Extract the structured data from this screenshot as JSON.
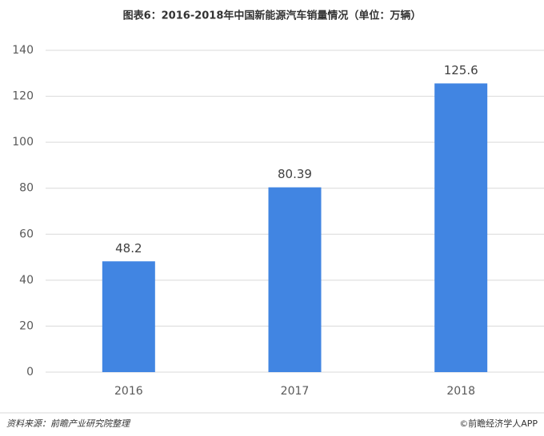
{
  "chart_data": {
    "type": "bar",
    "title": "图表6：2016-2018年中国新能源汽车销量情况（单位：万辆）",
    "categories": [
      "2016",
      "2017",
      "2018"
    ],
    "values": [
      48.2,
      80.39,
      125.6
    ],
    "color": "#4185e2",
    "ylim": [
      0,
      140
    ],
    "yticks": [
      0,
      20,
      40,
      60,
      80,
      100,
      120,
      140
    ],
    "grid": true,
    "source": "资料来源：前瞻产业研究院整理",
    "credit": "©前瞻经济学人APP"
  }
}
